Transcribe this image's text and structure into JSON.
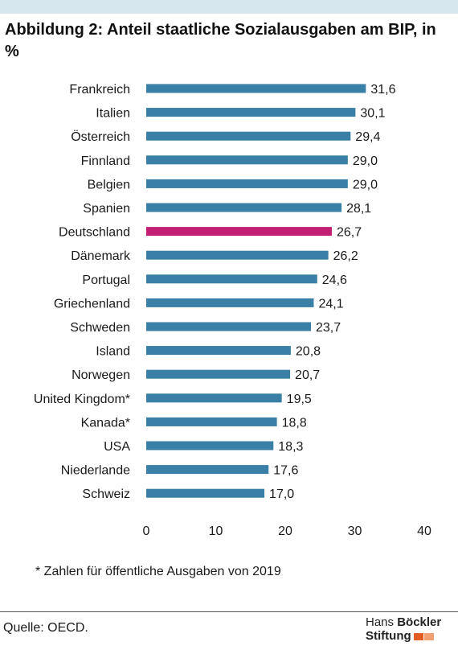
{
  "title": "Abbildung 2: Anteil staatliche Sozialausgaben am BIP, in %",
  "footnote": "* Zahlen für öffentliche Ausgaben von 2019",
  "source": "Quelle: OECD.",
  "logo": {
    "line1_a": "Hans",
    "line1_b": "Böckler",
    "line2": "Stiftung"
  },
  "colors": {
    "bar": "#3a80a6",
    "highlight": "#c21f74",
    "band": "#d6e7ee",
    "logo_a": "#e65c25",
    "logo_b": "#f2a071"
  },
  "chart_data": {
    "type": "bar",
    "orientation": "horizontal",
    "categories": [
      "Frankreich",
      "Italien",
      "Österreich",
      "Finnland",
      "Belgien",
      "Spanien",
      "Deutschland",
      "Dänemark",
      "Portugal",
      "Griechenland",
      "Schweden",
      "Island",
      "Norwegen",
      "United Kingdom*",
      "Kanada*",
      "USA",
      "Niederlande",
      "Schweiz"
    ],
    "values": [
      31.6,
      30.1,
      29.4,
      29.0,
      29.0,
      28.1,
      26.7,
      26.2,
      24.6,
      24.1,
      23.7,
      20.8,
      20.7,
      19.5,
      18.8,
      18.3,
      17.6,
      17.0
    ],
    "value_labels": [
      "31,6",
      "30,1",
      "29,4",
      "29,0",
      "29,0",
      "28,1",
      "26,7",
      "26,2",
      "24,6",
      "24,1",
      "23,7",
      "20,8",
      "20,7",
      "19,5",
      "18,8",
      "18,3",
      "17,6",
      "17,0"
    ],
    "highlight": "Deutschland",
    "xlim": [
      0,
      40
    ],
    "xticks": [
      0,
      10,
      20,
      30,
      40
    ],
    "grid": false
  }
}
